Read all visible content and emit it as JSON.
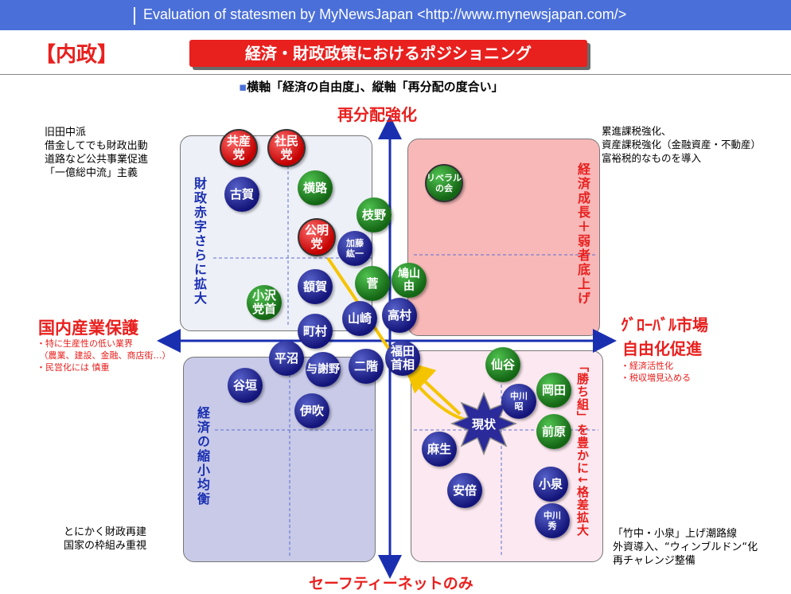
{
  "header": {
    "text": "Evaluation of statesmen  by MyNewsJapan <http://www.mynewsjapan.com/>"
  },
  "section": "【内政】",
  "title": "経済・財政政策におけるポジショニング",
  "subtitle": {
    "bullet": "▪",
    "text": "横軸「経済の自由度」、縦軸「再分配の度合い」"
  },
  "axes": {
    "top": "再分配強化",
    "bottom": "セーフティーネットのみ",
    "left": "国内産業保護",
    "right_line1": "ｸﾞﾛｰﾊﾞﾙ市場",
    "right_line2": "自由化促進"
  },
  "notes": {
    "top_left": "旧田中派\n借金してでも財政出動\n道路など公共事業促進\n「一億総中流」主義",
    "top_right": "累進課税強化、\n資産課税強化（金融資産・不動産）\n富裕税的なものを導入",
    "bottom_left": "とにかく財政再建\n国家の枠組み重視",
    "bottom_right": "「竹中・小泉」上げ潮路線\n外資導入、“ウィンブルドン“化\n再チャレンジ整備",
    "left_small": "・特に生産性の低い業界\n （農業、建設、金融、商店街…）\n・民営化には 慎重",
    "right_small": "・経済活性化\n・税収増見込める"
  },
  "quadrant_labels": {
    "top_left": "財政赤字さらに拡大",
    "top_right": "経済成長＋弱者底上げ",
    "bottom_left": "経済の縮小均衡",
    "bottom_right": "「勝ち組」を豊かに↓格差拡大"
  },
  "nodes": {
    "kyosan": "共産\n党",
    "shamin": "社民\n党",
    "koga": "古賀",
    "yokomichi": "横路",
    "edano": "枝野",
    "komei": "公明\n党",
    "kato": "加藤\n紘一",
    "liberal": "リベラル\nの会",
    "hatoyama": "鳩山\n由",
    "nukaga": "額賀",
    "kan": "菅",
    "ozawa": "小沢\n党首",
    "machimura": "町村",
    "yamasaki": "山崎",
    "komura": "高村",
    "hiranuma": "平沼",
    "yosano": "与謝野",
    "nikai": "二階",
    "fukuda": "福田\n首相",
    "tanigaki": "谷垣",
    "ibuki": "伊吹",
    "sengoku": "仙谷",
    "nakagawa_a": "中川\n昭",
    "okada": "岡田",
    "genjo": "現状",
    "maehara": "前原",
    "aso": "麻生",
    "abe": "安倍",
    "koizumi": "小泉",
    "nakagawa_h": "中川\n秀"
  },
  "colors": {
    "navy": "#14157a",
    "green": "#146614",
    "red": "#c40000",
    "axis": "#1a2fb0",
    "accent": "#e8201e"
  }
}
